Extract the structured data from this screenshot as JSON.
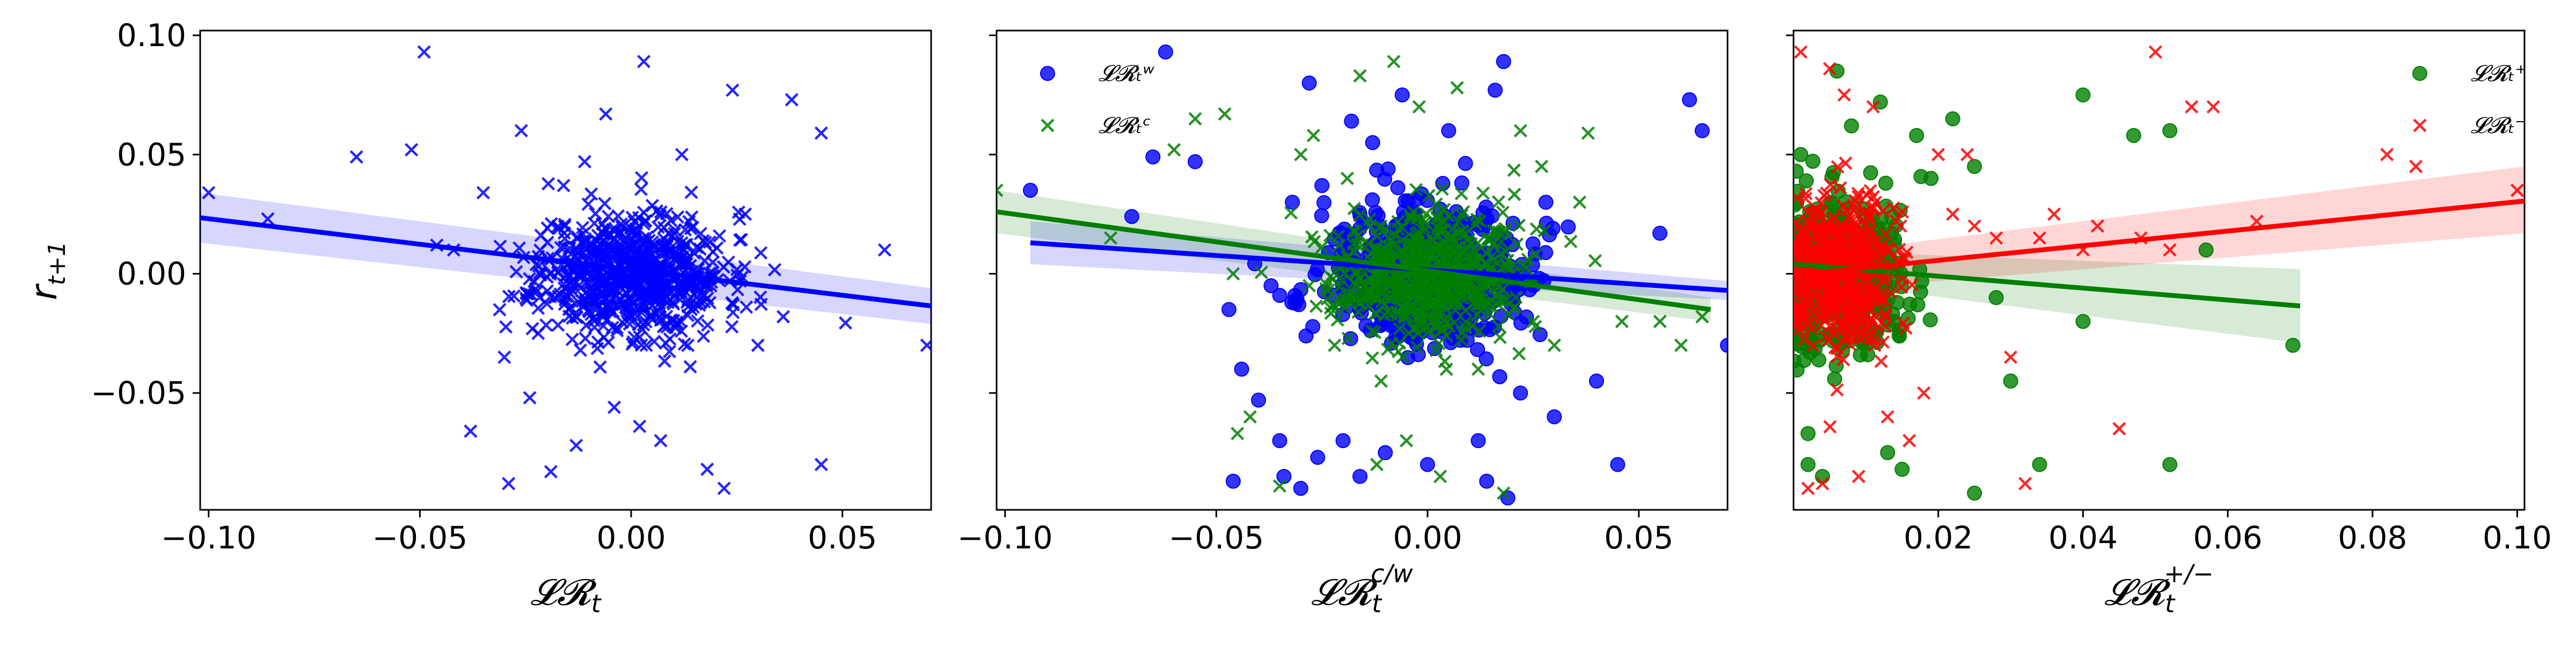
{
  "chart_data": [
    {
      "type": "scatter",
      "panel": "left",
      "xlabel": "𝓛𝓡ₜ",
      "ylabel": "rₜ₊₁",
      "xlim": [
        -0.102,
        0.071
      ],
      "ylim": [
        -0.099,
        0.102
      ],
      "xticks": [
        -0.1,
        -0.05,
        0.0,
        0.05
      ],
      "xtick_labels": [
        "−0.10",
        "−0.05",
        "0.00",
        "0.05"
      ],
      "yticks": [
        -0.05,
        0.0,
        0.05,
        0.1
      ],
      "ytick_labels": [
        "−0.05",
        "0.00",
        "0.05",
        "0.10"
      ],
      "grid": false,
      "series": [
        {
          "marker": "x",
          "color": "#0000ff",
          "regression": {
            "x": [
              -0.102,
              0.071
            ],
            "y": [
              0.0235,
              -0.0135
            ],
            "ci_low": [
              0.013,
              -0.021
            ],
            "ci_high": [
              0.034,
              -0.006
            ]
          },
          "points": [
            [
              -0.1,
              0.034
            ],
            [
              -0.086,
              0.023
            ],
            [
              -0.065,
              0.049
            ],
            [
              -0.052,
              0.052
            ],
            [
              -0.049,
              0.093
            ],
            [
              -0.046,
              0.012
            ],
            [
              -0.042,
              0.01
            ],
            [
              -0.038,
              -0.066
            ],
            [
              -0.035,
              0.034
            ],
            [
              -0.03,
              -0.035
            ],
            [
              -0.029,
              -0.088
            ],
            [
              -0.026,
              0.06
            ],
            [
              -0.024,
              -0.052
            ],
            [
              -0.022,
              -0.025
            ],
            [
              -0.019,
              -0.083
            ],
            [
              -0.016,
              0.037
            ],
            [
              -0.013,
              -0.072
            ],
            [
              -0.011,
              0.047
            ],
            [
              -0.006,
              0.067
            ],
            [
              -0.004,
              -0.056
            ],
            [
              0.002,
              -0.064
            ],
            [
              0.003,
              0.089
            ],
            [
              0.007,
              -0.07
            ],
            [
              0.012,
              0.05
            ],
            [
              0.014,
              -0.039
            ],
            [
              0.018,
              -0.082
            ],
            [
              0.022,
              -0.09
            ],
            [
              0.024,
              0.077
            ],
            [
              0.027,
              0.025
            ],
            [
              0.03,
              -0.03
            ],
            [
              0.036,
              -0.018
            ],
            [
              0.038,
              0.073
            ],
            [
              0.045,
              0.059
            ],
            [
              0.045,
              -0.08
            ],
            [
              0.06,
              0.01
            ],
            [
              0.07,
              -0.03
            ]
          ],
          "cloud": {
            "center": [
              0.0,
              0.0
            ],
            "spread": [
              0.011,
              0.013
            ],
            "count": 700,
            "seed": 11
          }
        }
      ]
    },
    {
      "type": "scatter",
      "panel": "middle",
      "xlabel": "𝓛𝓡ₜ^c/w",
      "xlim": [
        -0.102,
        0.071
      ],
      "ylim": [
        -0.099,
        0.102
      ],
      "xticks": [
        -0.1,
        -0.05,
        0.0,
        0.05
      ],
      "xtick_labels": [
        "−0.10",
        "−0.05",
        "0.00",
        "0.05"
      ],
      "grid": false,
      "legend": {
        "position": "top-left",
        "entries": [
          {
            "label": "𝓛𝓡ₜʷ",
            "marker": "circle",
            "color": "#0000ff"
          },
          {
            "label": "𝓛𝓡ₜᶜ",
            "marker": "x",
            "color": "#007f00"
          }
        ]
      },
      "series": [
        {
          "name": "𝓛𝓡ₜʷ",
          "marker": "circle",
          "color": "#0000ff",
          "regression": {
            "x": [
              -0.094,
              0.071
            ],
            "y": [
              0.013,
              -0.007
            ],
            "ci_low": [
              0.004,
              -0.011
            ],
            "ci_high": [
              0.022,
              -0.003
            ]
          },
          "points": [
            [
              -0.094,
              0.035
            ],
            [
              -0.07,
              0.024
            ],
            [
              -0.065,
              0.049
            ],
            [
              -0.062,
              0.093
            ],
            [
              -0.055,
              0.047
            ],
            [
              -0.047,
              -0.015
            ],
            [
              -0.046,
              -0.087
            ],
            [
              -0.044,
              -0.04
            ],
            [
              -0.04,
              -0.053
            ],
            [
              -0.035,
              -0.07
            ],
            [
              -0.034,
              -0.085
            ],
            [
              -0.032,
              0.03
            ],
            [
              -0.03,
              -0.09
            ],
            [
              -0.028,
              0.08
            ],
            [
              -0.026,
              -0.077
            ],
            [
              -0.025,
              0.037
            ],
            [
              -0.02,
              -0.07
            ],
            [
              -0.018,
              0.064
            ],
            [
              -0.016,
              -0.085
            ],
            [
              -0.013,
              0.055
            ],
            [
              -0.01,
              -0.075
            ],
            [
              -0.006,
              0.075
            ],
            [
              0.0,
              -0.08
            ],
            [
              0.005,
              0.06
            ],
            [
              0.012,
              -0.07
            ],
            [
              0.014,
              -0.087
            ],
            [
              0.016,
              0.077
            ],
            [
              0.018,
              0.089
            ],
            [
              0.019,
              -0.094
            ],
            [
              0.022,
              -0.05
            ],
            [
              0.028,
              0.03
            ],
            [
              0.03,
              -0.06
            ],
            [
              0.04,
              -0.045
            ],
            [
              0.045,
              -0.08
            ],
            [
              0.055,
              0.017
            ],
            [
              0.062,
              0.073
            ],
            [
              0.065,
              0.06
            ],
            [
              0.071,
              -0.03
            ]
          ],
          "cloud": {
            "center": [
              0.0,
              0.0
            ],
            "spread": [
              0.012,
              0.014
            ],
            "count": 600,
            "seed": 21
          }
        },
        {
          "name": "𝓛𝓡ₜᶜ",
          "marker": "x",
          "color": "#007f00",
          "regression": {
            "x": [
              -0.102,
              0.067
            ],
            "y": [
              0.026,
              -0.015
            ],
            "ci_low": [
              0.017,
              -0.02
            ],
            "ci_high": [
              0.035,
              -0.01
            ]
          },
          "points": [
            [
              -0.102,
              0.035
            ],
            [
              -0.075,
              0.015
            ],
            [
              -0.06,
              0.052
            ],
            [
              -0.055,
              0.065
            ],
            [
              -0.048,
              0.067
            ],
            [
              -0.046,
              0.0
            ],
            [
              -0.045,
              -0.067
            ],
            [
              -0.042,
              -0.06
            ],
            [
              -0.035,
              -0.089
            ],
            [
              -0.03,
              0.05
            ],
            [
              -0.027,
              0.058
            ],
            [
              -0.022,
              -0.03
            ],
            [
              -0.019,
              0.04
            ],
            [
              -0.016,
              0.083
            ],
            [
              -0.012,
              -0.08
            ],
            [
              -0.011,
              -0.045
            ],
            [
              -0.008,
              0.089
            ],
            [
              -0.005,
              -0.07
            ],
            [
              -0.002,
              0.07
            ],
            [
              0.003,
              -0.085
            ],
            [
              0.007,
              0.078
            ],
            [
              0.012,
              -0.04
            ],
            [
              0.018,
              -0.092
            ],
            [
              0.022,
              0.06
            ],
            [
              0.025,
              -0.02
            ],
            [
              0.027,
              0.045
            ],
            [
              0.03,
              -0.03
            ],
            [
              0.036,
              0.03
            ],
            [
              0.038,
              0.059
            ],
            [
              0.046,
              -0.02
            ],
            [
              0.055,
              -0.02
            ],
            [
              0.06,
              -0.03
            ],
            [
              0.065,
              -0.018
            ]
          ],
          "cloud": {
            "center": [
              0.0,
              0.0
            ],
            "spread": [
              0.011,
              0.013
            ],
            "count": 650,
            "seed": 33
          }
        }
      ]
    },
    {
      "type": "scatter",
      "panel": "right",
      "xlabel": "𝓛𝓡ₜ^+/−",
      "xlim": [
        0.0,
        0.101
      ],
      "ylim": [
        -0.099,
        0.102
      ],
      "xticks": [
        0.02,
        0.04,
        0.06,
        0.08,
        0.1
      ],
      "xtick_labels": [
        "0.02",
        "0.04",
        "0.06",
        "0.08",
        "0.10"
      ],
      "grid": false,
      "legend": {
        "position": "top-right",
        "entries": [
          {
            "label": "𝓛𝓡ₜ⁺",
            "marker": "circle",
            "color": "#007f00"
          },
          {
            "label": "𝓛𝓡ₜ⁻",
            "marker": "x",
            "color": "#ff0000"
          }
        ]
      },
      "series": [
        {
          "name": "𝓛𝓡ₜ⁺",
          "marker": "circle",
          "color": "#007f00",
          "regression": {
            "x": [
              0.0,
              0.07
            ],
            "y": [
              0.004,
              -0.0135
            ],
            "ci_low": [
              -0.002,
              -0.029
            ],
            "ci_high": [
              0.01,
              0.002
            ]
          },
          "points": [
            [
              0.001,
              0.05
            ],
            [
              0.002,
              -0.067
            ],
            [
              0.002,
              -0.08
            ],
            [
              0.004,
              -0.085
            ],
            [
              0.006,
              0.085
            ],
            [
              0.008,
              0.062
            ],
            [
              0.012,
              0.072
            ],
            [
              0.013,
              -0.075
            ],
            [
              0.015,
              -0.082
            ],
            [
              0.017,
              0.058
            ],
            [
              0.019,
              0.04
            ],
            [
              0.022,
              0.065
            ],
            [
              0.025,
              0.045
            ],
            [
              0.025,
              -0.092
            ],
            [
              0.028,
              -0.01
            ],
            [
              0.03,
              -0.045
            ],
            [
              0.034,
              -0.08
            ],
            [
              0.04,
              0.075
            ],
            [
              0.04,
              -0.02
            ],
            [
              0.047,
              0.058
            ],
            [
              0.052,
              0.06
            ],
            [
              0.052,
              -0.08
            ],
            [
              0.057,
              0.01
            ],
            [
              0.069,
              -0.03
            ]
          ],
          "cloud": {
            "center": [
              0.006,
              0.0
            ],
            "spread": [
              0.005,
              0.016
            ],
            "count": 450,
            "seed": 45
          }
        },
        {
          "name": "𝓛𝓡ₜ⁻",
          "marker": "x",
          "color": "#ff0000",
          "regression": {
            "x": [
              0.0,
              0.101
            ],
            "y": [
              -0.0005,
              0.0305
            ],
            "ci_low": [
              -0.008,
              0.017
            ],
            "ci_high": [
              0.007,
              0.045
            ]
          },
          "points": [
            [
              0.001,
              0.093
            ],
            [
              0.002,
              -0.09
            ],
            [
              0.004,
              -0.088
            ],
            [
              0.005,
              0.086
            ],
            [
              0.007,
              0.075
            ],
            [
              0.009,
              -0.085
            ],
            [
              0.011,
              0.07
            ],
            [
              0.013,
              -0.06
            ],
            [
              0.016,
              -0.07
            ],
            [
              0.018,
              -0.05
            ],
            [
              0.02,
              0.05
            ],
            [
              0.022,
              0.025
            ],
            [
              0.024,
              0.05
            ],
            [
              0.025,
              0.02
            ],
            [
              0.028,
              0.015
            ],
            [
              0.03,
              -0.035
            ],
            [
              0.032,
              -0.088
            ],
            [
              0.034,
              0.015
            ],
            [
              0.036,
              0.025
            ],
            [
              0.04,
              0.01
            ],
            [
              0.042,
              0.02
            ],
            [
              0.045,
              -0.065
            ],
            [
              0.048,
              0.015
            ],
            [
              0.05,
              0.093
            ],
            [
              0.052,
              0.01
            ],
            [
              0.055,
              0.07
            ],
            [
              0.058,
              0.07
            ],
            [
              0.064,
              0.022
            ],
            [
              0.082,
              0.05
            ],
            [
              0.086,
              0.045
            ],
            [
              0.1,
              0.035
            ]
          ],
          "cloud": {
            "center": [
              0.006,
              0.0
            ],
            "spread": [
              0.004,
              0.016
            ],
            "count": 550,
            "seed": 57
          }
        }
      ]
    }
  ]
}
